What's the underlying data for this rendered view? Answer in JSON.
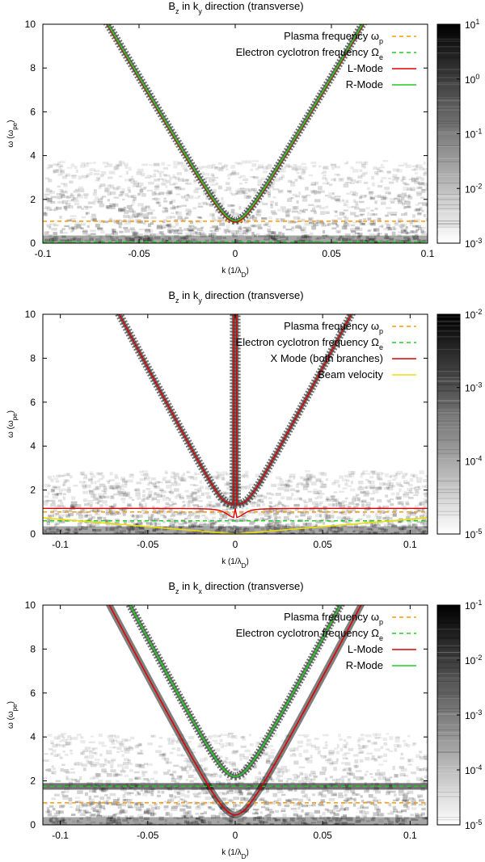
{
  "chart_data": [
    {
      "type": "heatmap",
      "title": "B_z in k_y direction (transverse)",
      "title_parts": {
        "main": "B",
        "sub": "z",
        "rest1": " in k",
        "sub2": "y",
        "rest2": " direction (transverse)"
      },
      "xlabel": "k (1/λ_D)",
      "ylabel": "ω (ω_pe)",
      "xlabel_parts": {
        "main": "k (1/λ",
        "sub": "D",
        "rest": ")"
      },
      "ylabel_parts": {
        "main": "ω (ω",
        "sub": "pe",
        "rest": ")"
      },
      "xlim": [
        -0.1,
        0.1
      ],
      "ylim": [
        0,
        10
      ],
      "xticks": [
        -0.1,
        -0.05,
        0,
        0.05,
        0.1
      ],
      "xtick_labels": [
        "-0.1",
        "-0.05",
        "0",
        "0.05",
        "0.1"
      ],
      "yticks": [
        0,
        2,
        4,
        6,
        8,
        10
      ],
      "ytick_labels": [
        "0",
        "2",
        "4",
        "6",
        "8",
        "10"
      ],
      "colorbar": {
        "scale": "log",
        "min_exp": -3,
        "max_exp": 1,
        "tick_labels": [
          "10^-3",
          "10^-2",
          "10^-1",
          "10^0",
          "10^1"
        ]
      },
      "legend_position": "top-right",
      "series": [
        {
          "name": "Plasma frequency ω_p",
          "label": "Plasma frequency ω",
          "sub": "p",
          "kind": "hline",
          "y": 1.0,
          "color": "#ff9900",
          "dash": true
        },
        {
          "name": "Electron cyclotron frequency Ω_e",
          "label": "Electron cyclotron frequency Ω",
          "sub": "e",
          "kind": "hline",
          "y": 0.05,
          "color": "#22cc22",
          "dash": true
        },
        {
          "name": "L-Mode",
          "label": "L-Mode",
          "kind": "curve",
          "formula": "L",
          "color": "#e00000"
        },
        {
          "name": "R-Mode",
          "label": "R-Mode",
          "kind": "curve",
          "formula": "R",
          "color": "#22cc22"
        }
      ],
      "params": {
        "c": 150,
        "wp": 1.0,
        "wc": 0.05
      }
    },
    {
      "type": "heatmap",
      "title": "B_z in k_y direction (transverse)",
      "title_parts": {
        "main": "B",
        "sub": "z",
        "rest1": " in k",
        "sub2": "y",
        "rest2": " direction (transverse)"
      },
      "xlabel": "k (1/λ_D)",
      "ylabel": "ω (ω_pe)",
      "xlabel_parts": {
        "main": "k (1/λ",
        "sub": "D",
        "rest": ")"
      },
      "ylabel_parts": {
        "main": "ω (ω",
        "sub": "pe",
        "rest": ")"
      },
      "xlim": [
        -0.11,
        0.11
      ],
      "ylim": [
        0,
        10
      ],
      "xticks": [
        -0.1,
        -0.05,
        0,
        0.05,
        0.1
      ],
      "xtick_labels": [
        "-0.1",
        "-0.05",
        "0",
        "0.05",
        "0.1"
      ],
      "yticks": [
        0,
        2,
        4,
        6,
        8,
        10
      ],
      "ytick_labels": [
        "0",
        "2",
        "4",
        "6",
        "8",
        "10"
      ],
      "colorbar": {
        "scale": "log",
        "min_exp": -5,
        "max_exp": -2,
        "tick_labels": [
          "10^-5",
          "10^-4",
          "10^-3",
          "10^-2"
        ]
      },
      "legend_position": "top-right",
      "series": [
        {
          "name": "Plasma frequency ω_p",
          "label": "Plasma frequency ω",
          "sub": "p",
          "kind": "hline",
          "y": 1.0,
          "color": "#ff9900",
          "dash": true
        },
        {
          "name": "Electron cyclotron frequency Ω_e",
          "label": "Electron cyclotron frequency Ω",
          "sub": "e",
          "kind": "hline",
          "y": 0.6,
          "color": "#22cc22",
          "dash": true
        },
        {
          "name": "X Mode (both branches)",
          "label": "X Mode (both branches)",
          "kind": "curve",
          "formula": "X",
          "color": "#e00000"
        },
        {
          "name": "Beam velocity",
          "label": "Beam velocity",
          "kind": "curve",
          "formula": "beam",
          "color": "#eedd00"
        }
      ],
      "params": {
        "c": 150,
        "wp": 1.0,
        "wc": 0.6,
        "beam_slope": 6.7
      }
    },
    {
      "type": "heatmap",
      "title": "B_z in k_x direction (transverse)",
      "title_parts": {
        "main": "B",
        "sub": "z",
        "rest1": " in k",
        "sub2": "x",
        "rest2": " direction (transverse)"
      },
      "xlabel": "k (1/λ_D)",
      "ylabel": "ω (ω_pe)",
      "xlabel_parts": {
        "main": "k (1/λ",
        "sub": "D",
        "rest": ")"
      },
      "ylabel_parts": {
        "main": "ω (ω",
        "sub": "pe",
        "rest": ")"
      },
      "xlim": [
        -0.11,
        0.11
      ],
      "ylim": [
        0,
        10
      ],
      "xticks": [
        -0.1,
        -0.05,
        0,
        0.05,
        0.1
      ],
      "xtick_labels": [
        "-0.1",
        "-0.05",
        "0",
        "0.05",
        "0.1"
      ],
      "yticks": [
        0,
        2,
        4,
        6,
        8,
        10
      ],
      "ytick_labels": [
        "0",
        "2",
        "4",
        "6",
        "8",
        "10"
      ],
      "colorbar": {
        "scale": "log",
        "min_exp": -5,
        "max_exp": -1,
        "tick_labels": [
          "10^-5",
          "10^-4",
          "10^-3",
          "10^-2",
          "10^-1"
        ]
      },
      "legend_position": "top-right",
      "series": [
        {
          "name": "Plasma frequency ω_p",
          "label": "Plasma frequency ω",
          "sub": "p",
          "kind": "hline",
          "y": 1.0,
          "color": "#ff9900",
          "dash": true
        },
        {
          "name": "Electron cyclotron frequency Ω_e",
          "label": "Electron cyclotron frequency Ω",
          "sub": "e",
          "kind": "hline",
          "y": 1.75,
          "color": "#22cc22",
          "dash": true
        },
        {
          "name": "L-Mode",
          "label": "L-Mode",
          "kind": "curve",
          "formula": "L",
          "color": "#e00000"
        },
        {
          "name": "R-Mode",
          "label": "R-Mode",
          "kind": "curve",
          "formula": "R",
          "color": "#22cc22"
        }
      ],
      "params": {
        "c": 150,
        "wp": 1.0,
        "wc": 1.75
      }
    }
  ]
}
